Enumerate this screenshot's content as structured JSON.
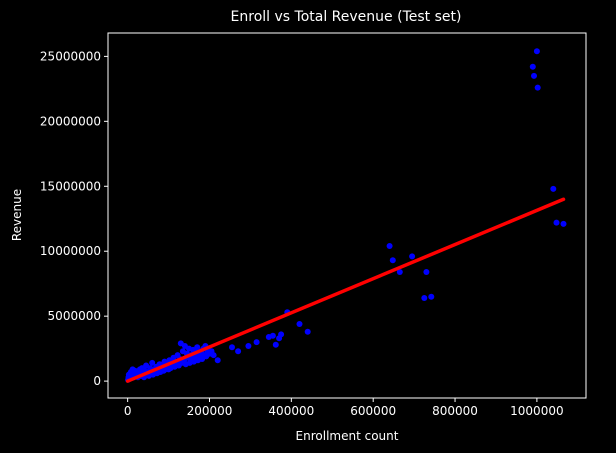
{
  "chart_data": {
    "type": "scatter",
    "title": "Enroll vs Total Revenue (Test set)",
    "xlabel": "Enrollment count",
    "ylabel": "Revenue",
    "xlim": [
      -48000,
      1120000
    ],
    "ylim": [
      -1300000,
      26800000
    ],
    "x_ticks": [
      0,
      200000,
      400000,
      600000,
      800000,
      1000000
    ],
    "x_tick_labels": [
      "0",
      "200000",
      "400000",
      "600000",
      "800000",
      "1000000"
    ],
    "y_ticks": [
      0,
      5000000,
      10000000,
      15000000,
      20000000,
      25000000
    ],
    "y_tick_labels": [
      "0",
      "5000000",
      "10000000",
      "15000000",
      "20000000",
      "25000000"
    ],
    "grid": false,
    "background": "#000000",
    "series": [
      {
        "kind": "scatter",
        "color": "#0000ff",
        "points": [
          [
            1000,
            100000
          ],
          [
            2000,
            300000
          ],
          [
            3000,
            500000
          ],
          [
            5000,
            200000
          ],
          [
            8000,
            700000
          ],
          [
            10000,
            400000
          ],
          [
            12000,
            900000
          ],
          [
            15000,
            300000
          ],
          [
            18000,
            800000
          ],
          [
            20000,
            500000
          ],
          [
            22000,
            600000
          ],
          [
            25000,
            300000
          ],
          [
            28000,
            700000
          ],
          [
            30000,
            900000
          ],
          [
            32000,
            400000
          ],
          [
            35000,
            1000000
          ],
          [
            38000,
            600000
          ],
          [
            40000,
            300000
          ],
          [
            42000,
            800000
          ],
          [
            45000,
            1200000
          ],
          [
            48000,
            500000
          ],
          [
            50000,
            700000
          ],
          [
            52000,
            400000
          ],
          [
            55000,
            1000000
          ],
          [
            58000,
            800000
          ],
          [
            60000,
            1400000
          ],
          [
            62000,
            500000
          ],
          [
            65000,
            900000
          ],
          [
            68000,
            700000
          ],
          [
            70000,
            1100000
          ],
          [
            72000,
            600000
          ],
          [
            75000,
            800000
          ],
          [
            78000,
            1300000
          ],
          [
            80000,
            700000
          ],
          [
            82000,
            1000000
          ],
          [
            85000,
            1200000
          ],
          [
            88000,
            800000
          ],
          [
            90000,
            1500000
          ],
          [
            92000,
            900000
          ],
          [
            95000,
            1100000
          ],
          [
            98000,
            1300000
          ],
          [
            100000,
            900000
          ],
          [
            102000,
            1600000
          ],
          [
            105000,
            1000000
          ],
          [
            108000,
            1400000
          ],
          [
            110000,
            1200000
          ],
          [
            112000,
            1800000
          ],
          [
            115000,
            1100000
          ],
          [
            118000,
            1500000
          ],
          [
            120000,
            1300000
          ],
          [
            122000,
            2000000
          ],
          [
            125000,
            1200000
          ],
          [
            128000,
            1700000
          ],
          [
            130000,
            2900000
          ],
          [
            132000,
            1400000
          ],
          [
            135000,
            2300000
          ],
          [
            138000,
            1600000
          ],
          [
            140000,
            2700000
          ],
          [
            142000,
            1300000
          ],
          [
            145000,
            2100000
          ],
          [
            148000,
            1800000
          ],
          [
            150000,
            2500000
          ],
          [
            152000,
            1400000
          ],
          [
            155000,
            2000000
          ],
          [
            158000,
            1700000
          ],
          [
            160000,
            2400000
          ],
          [
            162000,
            1500000
          ],
          [
            165000,
            2200000
          ],
          [
            168000,
            1900000
          ],
          [
            170000,
            2600000
          ],
          [
            172000,
            1600000
          ],
          [
            175000,
            2100000
          ],
          [
            178000,
            1800000
          ],
          [
            180000,
            2300000
          ],
          [
            182000,
            1700000
          ],
          [
            185000,
            2500000
          ],
          [
            188000,
            2000000
          ],
          [
            190000,
            2700000
          ],
          [
            192000,
            1900000
          ],
          [
            195000,
            2200000
          ],
          [
            198000,
            2400000
          ],
          [
            200000,
            2100000
          ],
          [
            205000,
            2300000
          ],
          [
            210000,
            2000000
          ],
          [
            220000,
            1600000
          ],
          [
            255000,
            2600000
          ],
          [
            270000,
            2300000
          ],
          [
            295000,
            2700000
          ],
          [
            315000,
            3000000
          ],
          [
            345000,
            3400000
          ],
          [
            355000,
            3500000
          ],
          [
            362000,
            2800000
          ],
          [
            370000,
            3300000
          ],
          [
            375000,
            3600000
          ],
          [
            390000,
            5300000
          ],
          [
            420000,
            4400000
          ],
          [
            440000,
            3800000
          ],
          [
            640000,
            10400000
          ],
          [
            648000,
            9300000
          ],
          [
            665000,
            8400000
          ],
          [
            695000,
            9600000
          ],
          [
            725000,
            6400000
          ],
          [
            730000,
            8400000
          ],
          [
            742000,
            6500000
          ],
          [
            990000,
            24200000
          ],
          [
            993000,
            23500000
          ],
          [
            1000000,
            25400000
          ],
          [
            1002000,
            22600000
          ],
          [
            1040000,
            14800000
          ],
          [
            1048000,
            12200000
          ],
          [
            1065000,
            12100000
          ]
        ]
      },
      {
        "kind": "line",
        "color": "#ff0000",
        "x": [
          0,
          1065000
        ],
        "y": [
          0,
          14000000
        ]
      }
    ]
  }
}
